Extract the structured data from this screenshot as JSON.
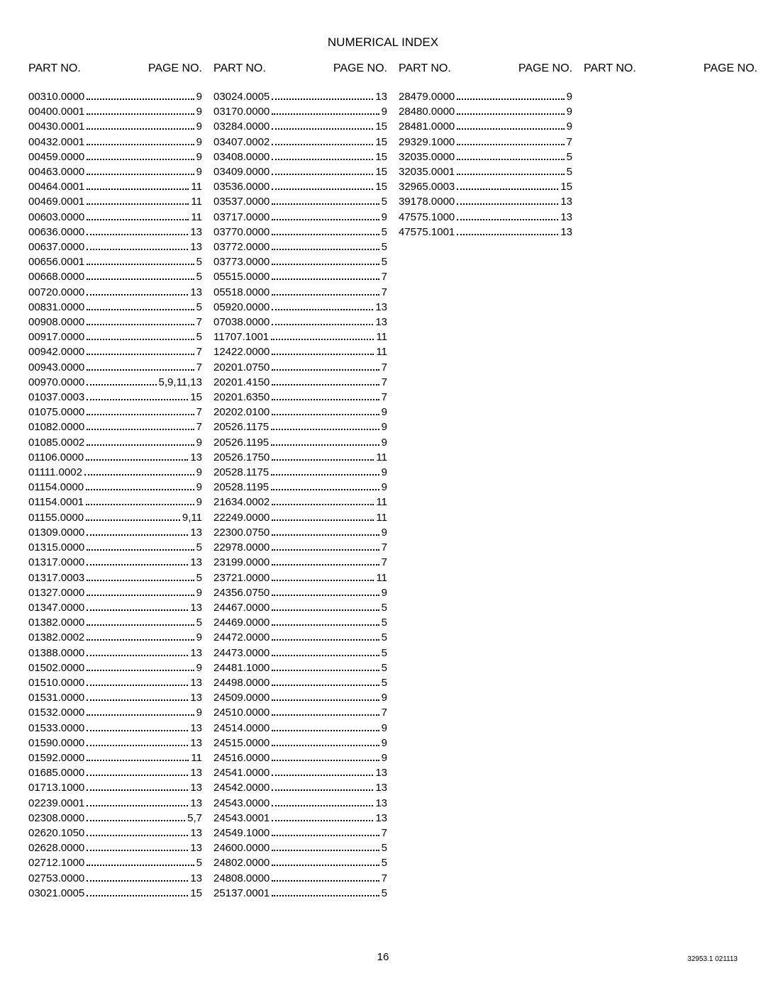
{
  "title": "NUMERICAL INDEX",
  "headers": {
    "part": "PART NO.",
    "page": "PAGE NO."
  },
  "footer": {
    "page": "16",
    "doc": "32953.1 021113"
  },
  "columns": [
    {
      "rows": [
        {
          "part": "00310.0000",
          "page": "9"
        },
        {
          "part": "00400.0001",
          "page": "9"
        },
        {
          "part": "00430.0001",
          "page": "9"
        },
        {
          "part": "00432.0001",
          "page": "9"
        },
        {
          "part": "00459.0000",
          "page": "9"
        },
        {
          "part": "00463.0000",
          "page": "9"
        },
        {
          "part": "00464.0001",
          "page": "11"
        },
        {
          "part": "00469.0001",
          "page": "11"
        },
        {
          "part": "00603.0000",
          "page": "11"
        },
        {
          "part": "00636.0000",
          "page": "13"
        },
        {
          "part": "00637.0000",
          "page": "13"
        },
        {
          "part": "00656.0001",
          "page": "5"
        },
        {
          "part": "00668.0000",
          "page": "5"
        },
        {
          "part": "00720.0000",
          "page": "13"
        },
        {
          "part": "00831.0000",
          "page": "5"
        },
        {
          "part": "00908.0000",
          "page": "7"
        },
        {
          "part": "00917.0000",
          "page": "5"
        },
        {
          "part": "00942.0000",
          "page": "7"
        },
        {
          "part": "00943.0000",
          "page": "7"
        },
        {
          "part": "00970.0000",
          "page": "5,9,11,13"
        },
        {
          "part": "01037.0003",
          "page": "15"
        },
        {
          "part": "01075.0000",
          "page": "7"
        },
        {
          "part": "01082.0000",
          "page": "7"
        },
        {
          "part": "01085.0002",
          "page": "9"
        },
        {
          "part": "01106.0000",
          "page": "13"
        },
        {
          "part": "01111.0002",
          "page": "9"
        },
        {
          "part": "01154.0000",
          "page": "9"
        },
        {
          "part": "01154.0001",
          "page": "9"
        },
        {
          "part": "01155.0000",
          "page": "9,11"
        },
        {
          "part": "01309.0000",
          "page": "13"
        },
        {
          "part": "01315.0000",
          "page": "5"
        },
        {
          "part": "01317.0000",
          "page": "13"
        },
        {
          "part": "01317.0003",
          "page": "5"
        },
        {
          "part": "01327.0000",
          "page": "9"
        },
        {
          "part": "01347.0000",
          "page": "13"
        },
        {
          "part": "01382.0000",
          "page": "5"
        },
        {
          "part": "01382.0002",
          "page": "9"
        },
        {
          "part": "01388.0000",
          "page": "13"
        },
        {
          "part": "01502.0000",
          "page": "9"
        },
        {
          "part": "01510.0000",
          "page": "13"
        },
        {
          "part": "01531.0000",
          "page": "13"
        },
        {
          "part": "01532.0000",
          "page": "9"
        },
        {
          "part": "01533.0000",
          "page": "13"
        },
        {
          "part": "01590.0000",
          "page": "13"
        },
        {
          "part": "01592.0000",
          "page": "11"
        },
        {
          "part": "01685.0000",
          "page": "13"
        },
        {
          "part": "01713.1000",
          "page": "13"
        },
        {
          "part": "02239.0001",
          "page": "13"
        },
        {
          "part": "02308.0000",
          "page": "5,7"
        },
        {
          "part": "02620.1050",
          "page": "13"
        },
        {
          "part": "02628.0000",
          "page": "13"
        },
        {
          "part": "02712.1000",
          "page": "5"
        },
        {
          "part": "02753.0000",
          "page": "13"
        },
        {
          "part": "03021.0005",
          "page": "15"
        }
      ]
    },
    {
      "rows": [
        {
          "part": "03024.0005",
          "page": "13"
        },
        {
          "part": "03170.0000",
          "page": "9"
        },
        {
          "part": "03284.0000",
          "page": "15"
        },
        {
          "part": "03407.0002",
          "page": "15"
        },
        {
          "part": "03408.0000",
          "page": "15"
        },
        {
          "part": "03409.0000",
          "page": "15"
        },
        {
          "part": "03536.0000",
          "page": "15"
        },
        {
          "part": "03537.0000",
          "page": "5"
        },
        {
          "part": "03717.0000",
          "page": "9"
        },
        {
          "part": "03770.0000",
          "page": "5"
        },
        {
          "part": "03772.0000",
          "page": "5"
        },
        {
          "part": "03773.0000",
          "page": "5"
        },
        {
          "part": "05515.0000",
          "page": "7"
        },
        {
          "part": "05518.0000",
          "page": "7"
        },
        {
          "part": "05920.0000",
          "page": "13"
        },
        {
          "part": "07038.0000",
          "page": "13"
        },
        {
          "part": "11707.1001",
          "page": "11"
        },
        {
          "part": "12422.0000",
          "page": "11"
        },
        {
          "part": "20201.0750",
          "page": "7"
        },
        {
          "part": "20201.4150",
          "page": "7"
        },
        {
          "part": "20201.6350",
          "page": "7"
        },
        {
          "part": "20202.0100",
          "page": "9"
        },
        {
          "part": "20526.1175",
          "page": "9"
        },
        {
          "part": "20526.1195",
          "page": "9"
        },
        {
          "part": "20526.1750",
          "page": "11"
        },
        {
          "part": "20528.1175",
          "page": "9"
        },
        {
          "part": "20528.1195",
          "page": "9"
        },
        {
          "part": "21634.0002",
          "page": "11"
        },
        {
          "part": "22249.0000",
          "page": "11"
        },
        {
          "part": "22300.0750",
          "page": "9"
        },
        {
          "part": "22978.0000",
          "page": "7"
        },
        {
          "part": "23199.0000",
          "page": "7"
        },
        {
          "part": "23721.0000",
          "page": "11"
        },
        {
          "part": "24356.0750",
          "page": "9"
        },
        {
          "part": "24467.0000",
          "page": "5"
        },
        {
          "part": "24469.0000",
          "page": "5"
        },
        {
          "part": "24472.0000",
          "page": "5"
        },
        {
          "part": "24473.0000",
          "page": "5"
        },
        {
          "part": "24481.1000",
          "page": "5"
        },
        {
          "part": "24498.0000",
          "page": "5"
        },
        {
          "part": "24509.0000",
          "page": "9"
        },
        {
          "part": "24510.0000",
          "page": "7"
        },
        {
          "part": "24514.0000",
          "page": "9"
        },
        {
          "part": "24515.0000",
          "page": "9"
        },
        {
          "part": "24516.0000",
          "page": "9"
        },
        {
          "part": "24541.0000",
          "page": "13"
        },
        {
          "part": "24542.0000",
          "page": "13"
        },
        {
          "part": "24543.0000",
          "page": "13"
        },
        {
          "part": "24543.0001",
          "page": "13"
        },
        {
          "part": "24549.1000",
          "page": "7"
        },
        {
          "part": "24600.0000",
          "page": "5"
        },
        {
          "part": "24802.0000",
          "page": "5"
        },
        {
          "part": "24808.0000",
          "page": "7"
        },
        {
          "part": "25137.0001",
          "page": "5"
        }
      ]
    },
    {
      "rows": [
        {
          "part": "28479.0000",
          "page": "9"
        },
        {
          "part": "28480.0000",
          "page": "9"
        },
        {
          "part": "28481.0000",
          "page": "9"
        },
        {
          "part": "29329.1000",
          "page": "7"
        },
        {
          "part": "32035.0000",
          "page": "5"
        },
        {
          "part": "32035.0001",
          "page": "5"
        },
        {
          "part": "32965.0003",
          "page": "15"
        },
        {
          "part": "39178.0000",
          "page": "13"
        },
        {
          "part": "47575.1000",
          "page": "13"
        },
        {
          "part": "47575.1001",
          "page": "13"
        }
      ]
    },
    {
      "rows": []
    }
  ]
}
